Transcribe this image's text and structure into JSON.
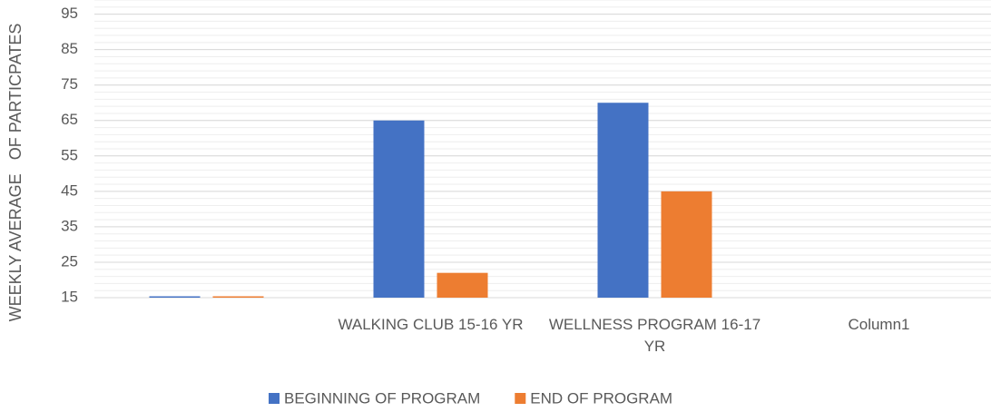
{
  "chart_data": {
    "type": "bar",
    "y_label": "WEEKLY AVERAGE   OF PARTICPATES",
    "categories": [
      null,
      "WALKING CLUB 15-16 YR",
      "WELLNESS PROGRAM 16-17 YR",
      "Column1"
    ],
    "series": [
      {
        "name": "BEGINNING OF PROGRAM",
        "color": "#4472c4",
        "values": [
          15,
          65,
          70,
          null
        ]
      },
      {
        "name": "END OF PROGRAM",
        "color": "#ed7d31",
        "values": [
          15,
          22,
          45,
          null
        ]
      }
    ],
    "ylim": [
      15,
      99
    ],
    "yticks": [
      15,
      25,
      35,
      45,
      55,
      65,
      75,
      85,
      95
    ],
    "grid": true,
    "legend": "bottom"
  }
}
